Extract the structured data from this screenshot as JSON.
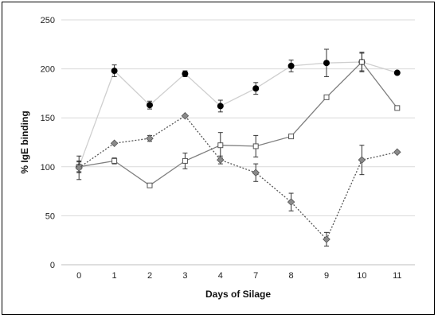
{
  "chart_data": {
    "type": "line",
    "title": "",
    "xlabel": "Days of Silage",
    "ylabel": "% IgE binding",
    "categories": [
      "0",
      "1",
      "2",
      "3",
      "4",
      "7",
      "8",
      "9",
      "10",
      "11"
    ],
    "ylim": [
      0,
      250
    ],
    "yticks": [
      0,
      50,
      100,
      150,
      200,
      250
    ],
    "grid": true,
    "legend": "none",
    "series": [
      {
        "marker": "circle",
        "line_style": "solid",
        "line_color": "#cfcfcf",
        "marker_color": "#000000",
        "values": [
          100,
          198,
          163,
          195,
          162,
          180,
          203,
          206,
          207,
          196
        ],
        "errors": [
          5,
          6,
          4,
          3,
          6,
          6,
          6,
          14,
          10,
          0
        ]
      },
      {
        "marker": "square-open",
        "line_style": "solid",
        "line_color": "#7f7f7f",
        "marker_color": "#ffffff",
        "values": [
          100,
          106,
          81,
          106,
          122,
          121,
          131,
          171,
          207,
          160
        ],
        "errors": [
          6,
          3,
          0,
          8,
          13,
          11,
          0,
          0,
          9,
          0
        ]
      },
      {
        "marker": "diamond",
        "line_style": "dotted",
        "line_color": "#555555",
        "marker_color": "#8a8a8a",
        "values": [
          99,
          124,
          129,
          152,
          107,
          94,
          64,
          26,
          107,
          115
        ],
        "errors": [
          12,
          0,
          3,
          0,
          4,
          9,
          9,
          7,
          15,
          0
        ]
      }
    ]
  }
}
